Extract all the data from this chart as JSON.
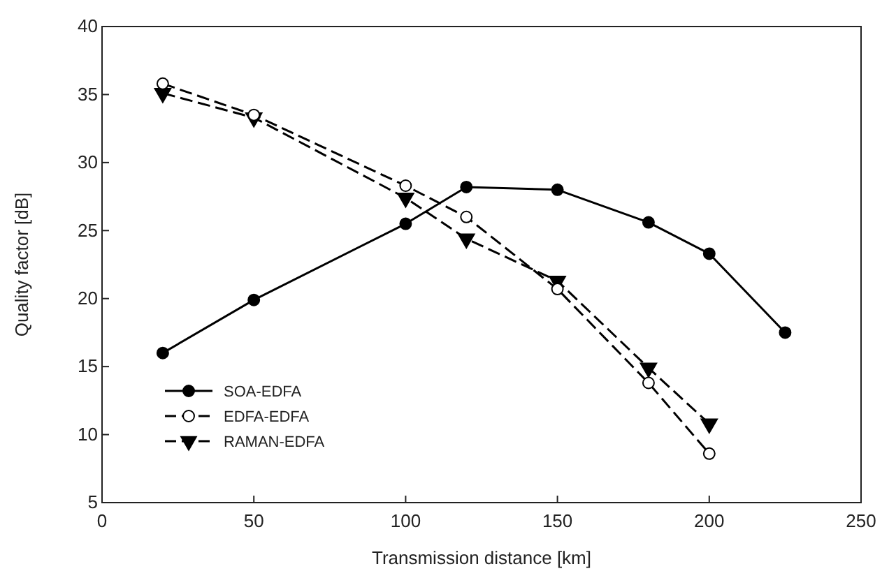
{
  "chart_data": {
    "type": "line",
    "xlabel": "Transmission distance [km]",
    "ylabel": "Quality factor [dB]",
    "x": [
      20,
      50,
      100,
      120,
      150,
      180,
      200,
      225
    ],
    "series": [
      {
        "name": "SOA-EDFA",
        "color": "#000000",
        "marker": "circle",
        "line_style": "solid",
        "values": [
          16.0,
          19.9,
          25.5,
          28.2,
          28.0,
          25.6,
          23.3,
          17.5
        ]
      },
      {
        "name": "EDFA-EDFA",
        "color": "#000000",
        "marker": "circle",
        "line_style": "dashed",
        "x": [
          20,
          50,
          100,
          120,
          150,
          180,
          200
        ],
        "values": [
          35.8,
          33.5,
          28.3,
          26.0,
          20.7,
          13.8,
          8.6
        ]
      },
      {
        "name": "RAMAN-EDFA",
        "color": "#000000",
        "marker": "triangle",
        "line_style": "dashed",
        "x": [
          20,
          50,
          100,
          120,
          150,
          180,
          200
        ],
        "values": [
          35.1,
          33.3,
          27.4,
          24.4,
          21.3,
          14.9,
          10.8
        ]
      }
    ],
    "xlim": [
      0,
      250
    ],
    "xticks": [
      0,
      50,
      100,
      150,
      200,
      250
    ],
    "ylim": [
      5,
      40
    ],
    "yticks": [
      5,
      10,
      15,
      20,
      25,
      30,
      35,
      40
    ],
    "grid": false,
    "legend": "bottom left"
  }
}
